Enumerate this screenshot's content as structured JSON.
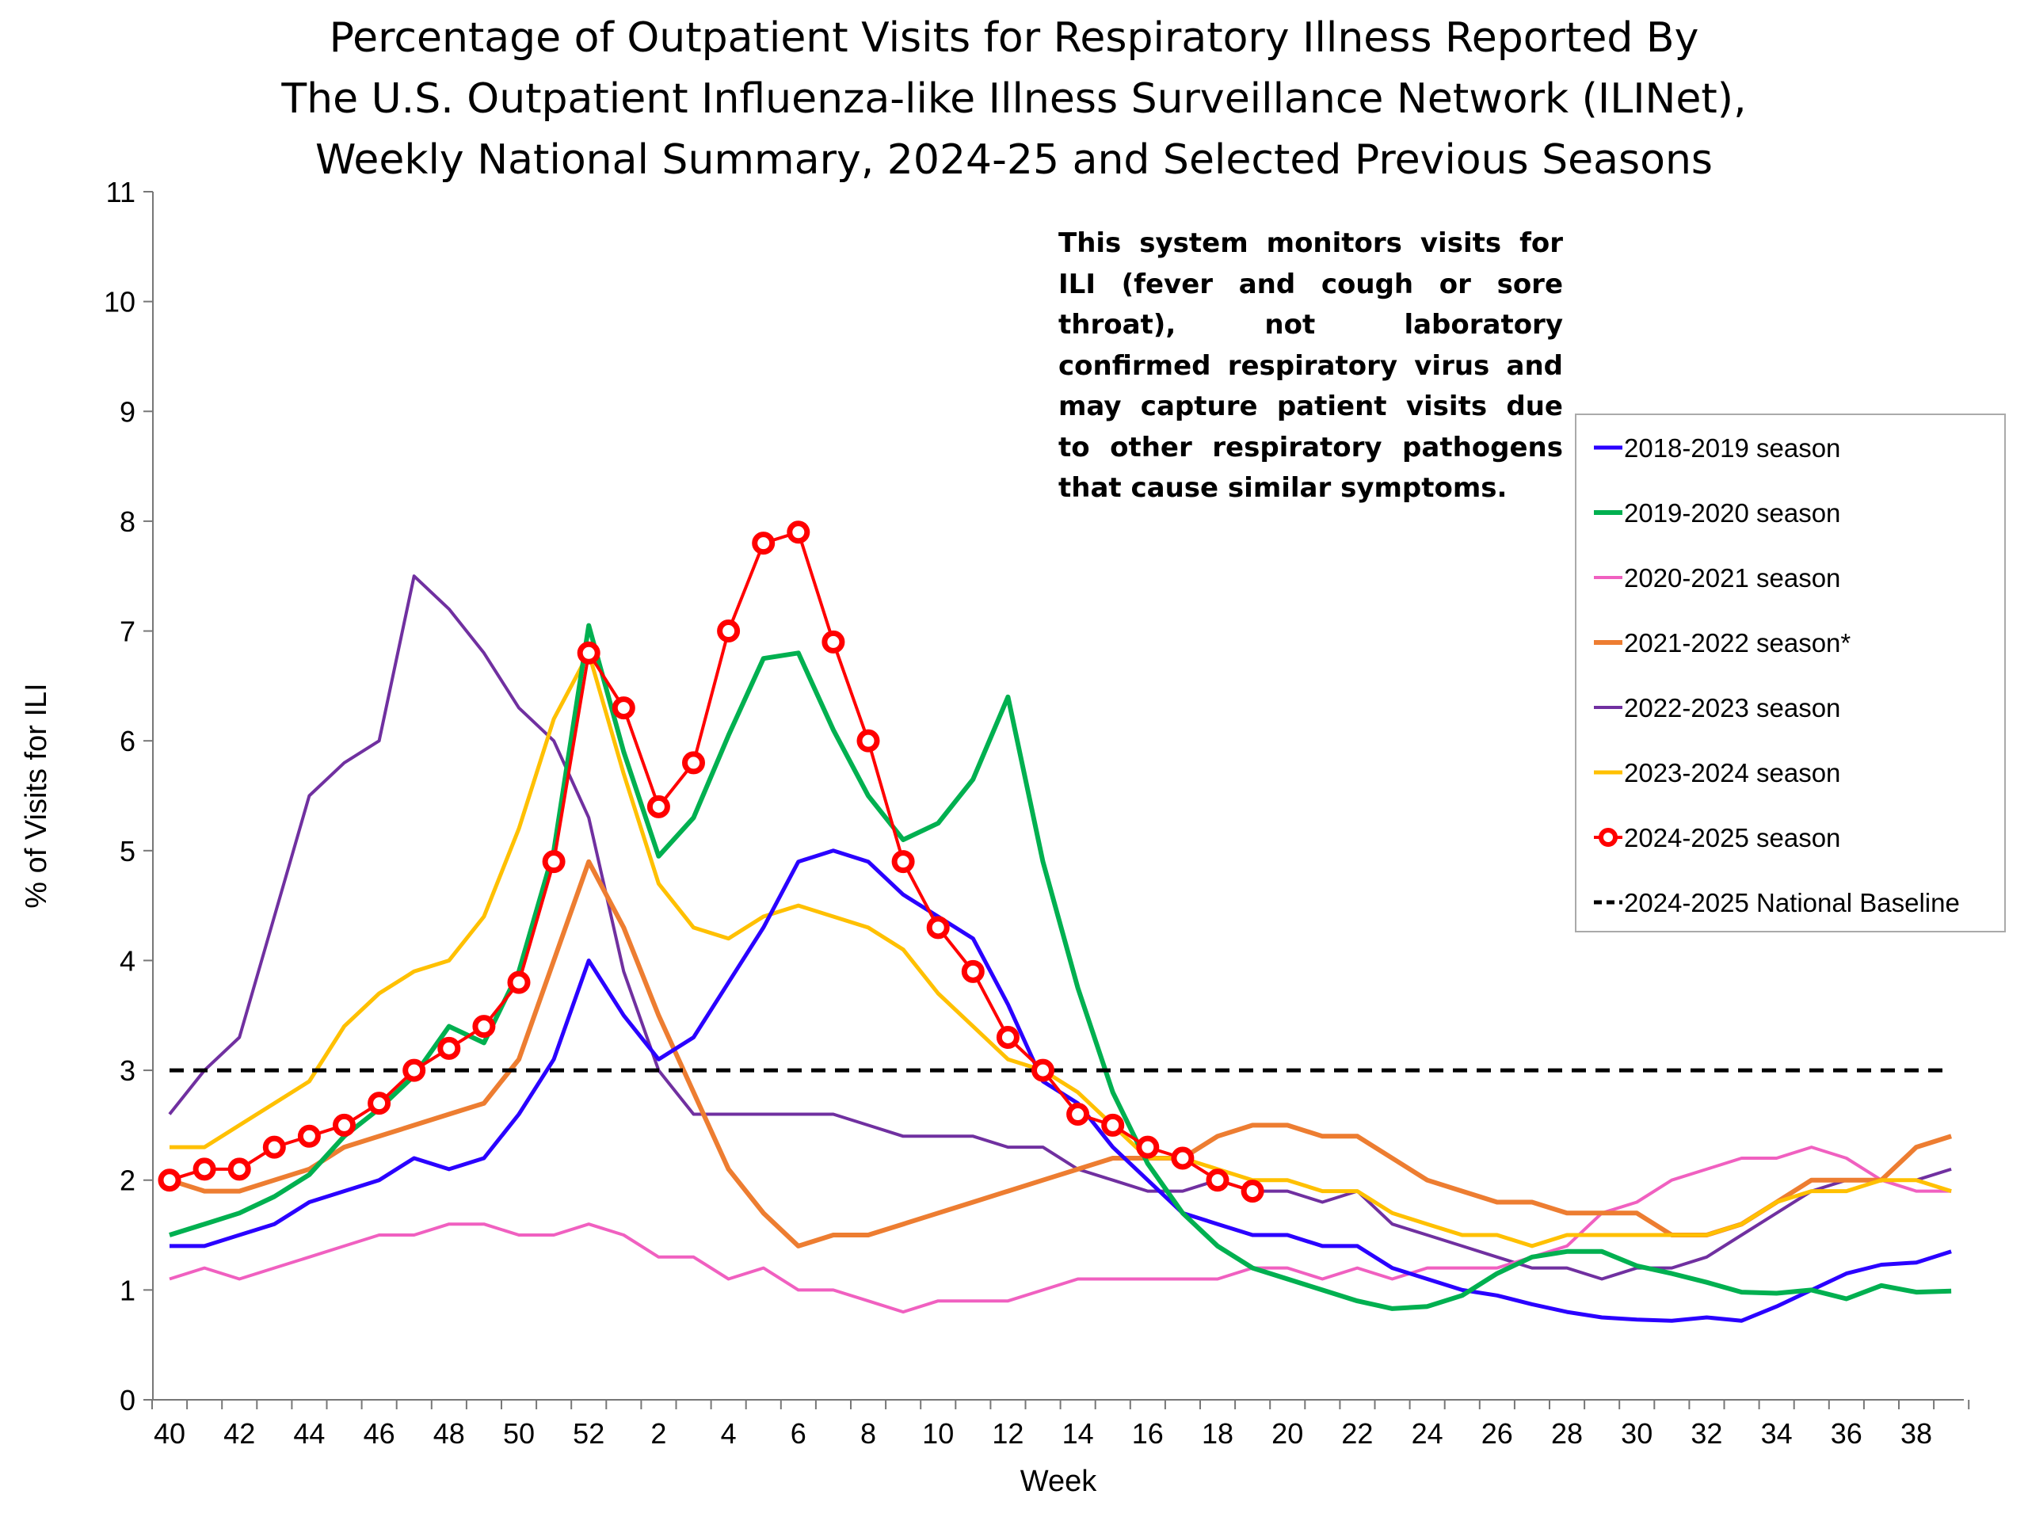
{
  "chart_data": {
    "type": "line",
    "title": [
      "Percentage of Outpatient Visits for Respiratory Illness Reported By",
      "The U.S. Outpatient Influenza-like Illness Surveillance Network (ILINet),",
      "Weekly National Summary, 2024-25 and Selected Previous Seasons"
    ],
    "xlabel": "Week",
    "ylabel": "% of Visits for ILI",
    "ylim": [
      0,
      11
    ],
    "yticks": [
      "0",
      "1",
      "2",
      "3",
      "4",
      "5",
      "6",
      "7",
      "8",
      "9",
      "10",
      "11"
    ],
    "x": [
      40,
      41,
      42,
      43,
      44,
      45,
      46,
      47,
      48,
      49,
      50,
      51,
      52,
      1,
      2,
      3,
      4,
      5,
      6,
      7,
      8,
      9,
      10,
      11,
      12,
      13,
      14,
      15,
      16,
      17,
      18,
      19,
      20,
      21,
      22,
      23,
      24,
      25,
      26,
      27,
      28,
      29,
      30,
      31,
      32,
      33,
      34,
      35,
      36,
      37,
      38,
      39
    ],
    "xtick_labels": [
      "40",
      "42",
      "44",
      "46",
      "48",
      "50",
      "52",
      "2",
      "4",
      "6",
      "8",
      "10",
      "12",
      "14",
      "16",
      "18",
      "20",
      "22",
      "24",
      "26",
      "28",
      "30",
      "32",
      "34",
      "36",
      "38"
    ],
    "grid": false,
    "legend_placement": "right",
    "annotation": "This system monitors visits for ILI (fever and cough or sore throat), not laboratory confirmed respiratory virus and may capture patient visits due to other respiratory pathogens that cause similar symptoms.",
    "series": [
      {
        "name": "2018-2019 season",
        "color": "#2a00ff",
        "width": 5,
        "values": [
          1.4,
          1.4,
          1.5,
          1.6,
          1.8,
          1.9,
          2.0,
          2.2,
          2.1,
          2.2,
          2.6,
          3.1,
          4.0,
          3.5,
          3.1,
          3.3,
          3.8,
          4.3,
          4.9,
          5.0,
          4.9,
          4.6,
          4.4,
          4.2,
          3.6,
          2.9,
          2.7,
          2.3,
          2.0,
          1.7,
          1.6,
          1.5,
          1.5,
          1.4,
          1.4,
          1.2,
          1.1,
          1.0,
          0.95,
          0.87,
          0.8,
          0.75,
          0.73,
          0.72,
          0.75,
          0.72,
          0.85,
          1.0,
          1.15,
          1.23,
          1.25,
          1.35
        ]
      },
      {
        "name": "2019-2020 season",
        "color": "#00b050",
        "width": 6,
        "values": [
          1.5,
          1.6,
          1.7,
          1.85,
          2.05,
          2.4,
          2.65,
          2.95,
          3.4,
          3.25,
          3.9,
          5.0,
          7.05,
          5.9,
          4.95,
          5.3,
          6.05,
          6.75,
          6.8,
          6.1,
          5.5,
          5.1,
          5.25,
          5.65,
          6.4,
          4.9,
          3.75,
          2.8,
          2.15,
          1.7,
          1.4,
          1.2,
          1.1,
          1.0,
          0.9,
          0.83,
          0.85,
          0.95,
          1.15,
          1.3,
          1.35,
          1.35,
          1.22,
          1.15,
          1.07,
          0.98,
          0.97,
          1.0,
          0.92,
          1.04,
          0.98,
          0.99
        ]
      },
      {
        "name": "2020-2021 season",
        "color": "#f060c0",
        "width": 4,
        "values": [
          1.1,
          1.2,
          1.1,
          1.2,
          1.3,
          1.4,
          1.5,
          1.5,
          1.6,
          1.6,
          1.5,
          1.5,
          1.6,
          1.5,
          1.3,
          1.3,
          1.1,
          1.2,
          1.0,
          1.0,
          0.9,
          0.8,
          0.9,
          0.9,
          0.9,
          1.0,
          1.1,
          1.1,
          1.1,
          1.1,
          1.1,
          1.2,
          1.2,
          1.1,
          1.2,
          1.1,
          1.2,
          1.2,
          1.2,
          1.3,
          1.4,
          1.7,
          1.8,
          2.0,
          2.1,
          2.2,
          2.2,
          2.3,
          2.2,
          2.0,
          1.9,
          1.9
        ]
      },
      {
        "name": "2021-2022 season*",
        "color": "#ed7d31",
        "width": 6,
        "values": [
          2.0,
          1.9,
          1.9,
          2.0,
          2.1,
          2.3,
          2.4,
          2.5,
          2.6,
          2.7,
          3.1,
          4.0,
          4.9,
          4.3,
          3.5,
          2.8,
          2.1,
          1.7,
          1.4,
          1.5,
          1.5,
          1.6,
          1.7,
          1.8,
          1.9,
          2.0,
          2.1,
          2.2,
          2.2,
          2.2,
          2.4,
          2.5,
          2.5,
          2.4,
          2.4,
          2.2,
          2.0,
          1.9,
          1.8,
          1.8,
          1.7,
          1.7,
          1.7,
          1.5,
          1.5,
          1.6,
          1.8,
          2.0,
          2.0,
          2.0,
          2.3,
          2.4
        ]
      },
      {
        "name": "2022-2023 season",
        "color": "#7030a0",
        "width": 4,
        "values": [
          2.6,
          3.0,
          3.3,
          4.4,
          5.5,
          5.8,
          6.0,
          7.5,
          7.2,
          6.8,
          6.3,
          6.0,
          5.3,
          3.9,
          3.0,
          2.6,
          2.6,
          2.6,
          2.6,
          2.6,
          2.5,
          2.4,
          2.4,
          2.4,
          2.3,
          2.3,
          2.1,
          2.0,
          1.9,
          1.9,
          2.0,
          1.9,
          1.9,
          1.8,
          1.9,
          1.6,
          1.5,
          1.4,
          1.3,
          1.2,
          1.2,
          1.1,
          1.2,
          1.2,
          1.3,
          1.5,
          1.7,
          1.9,
          2.0,
          2.0,
          2.0,
          2.1
        ]
      },
      {
        "name": "2023-2024 season",
        "color": "#ffc000",
        "width": 5,
        "values": [
          2.3,
          2.3,
          2.5,
          2.7,
          2.9,
          3.4,
          3.7,
          3.9,
          4.0,
          4.4,
          5.2,
          6.2,
          6.8,
          5.7,
          4.7,
          4.3,
          4.2,
          4.4,
          4.5,
          4.4,
          4.3,
          4.1,
          3.7,
          3.4,
          3.1,
          3.0,
          2.8,
          2.5,
          2.2,
          2.2,
          2.1,
          2.0,
          2.0,
          1.9,
          1.9,
          1.7,
          1.6,
          1.5,
          1.5,
          1.4,
          1.5,
          1.5,
          1.5,
          1.5,
          1.5,
          1.6,
          1.8,
          1.9,
          1.9,
          2.0,
          2.0,
          1.9
        ]
      },
      {
        "name": "2024-2025 season",
        "color": "#ff0000",
        "width": 4,
        "markers": true,
        "values": [
          2.0,
          2.1,
          2.1,
          2.3,
          2.4,
          2.5,
          2.7,
          3.0,
          3.2,
          3.4,
          3.8,
          4.9,
          6.8,
          6.3,
          5.4,
          5.8,
          7.0,
          7.8,
          7.9,
          6.9,
          6.0,
          4.9,
          4.3,
          3.9,
          3.3,
          3.0,
          2.6,
          2.5,
          2.3,
          2.2,
          2.0,
          1.9,
          null,
          null,
          null,
          null,
          null,
          null,
          null,
          null,
          null,
          null,
          null,
          null,
          null,
          null,
          null,
          null,
          null,
          null,
          null,
          null
        ]
      },
      {
        "name": "2024-2025 National Baseline",
        "color": "#000000",
        "width": 5,
        "dashed": true,
        "baseline": 3.0
      }
    ]
  }
}
